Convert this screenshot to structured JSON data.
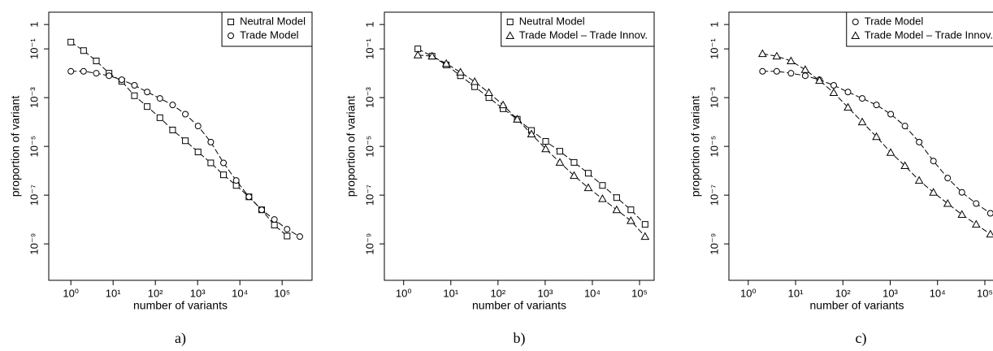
{
  "chart_data": [
    {
      "type": "line",
      "label": "a)",
      "xlabel": "number of variants",
      "ylabel": "proportion of variant",
      "log_x": true,
      "log_y": true,
      "legend": "topright",
      "xlim": [
        0.3,
        510000
      ],
      "ylim": [
        3.2e-11,
        3.2
      ],
      "xticks": [
        {
          "value": 1,
          "label": "10⁰"
        },
        {
          "value": 10,
          "label": "10¹"
        },
        {
          "value": 100,
          "label": "10²"
        },
        {
          "value": 1000,
          "label": "10³"
        },
        {
          "value": 10000,
          "label": "10⁴"
        },
        {
          "value": 100000,
          "label": "10⁵"
        }
      ],
      "yticks": [
        1,
        {
          "value": 0.1,
          "label": "10⁻¹"
        },
        {
          "value": 0.001,
          "label": "10⁻³"
        },
        {
          "value": 1e-05,
          "label": "10⁻⁵"
        },
        {
          "value": 1e-07,
          "label": "10⁻⁷"
        },
        {
          "value": 1e-09,
          "label": "10⁻⁹"
        }
      ],
      "series": [
        {
          "name": "Neutral Model",
          "color": "#000000",
          "marker": "square",
          "x": [
            1,
            2,
            4,
            8,
            16,
            32,
            64,
            128,
            256,
            512,
            1024,
            2048,
            4096,
            8192,
            16384,
            32768,
            65536,
            131072
          ],
          "values": [
            0.19,
            0.085,
            0.032,
            0.01,
            0.0047,
            0.0012,
            0.00043,
            0.00015,
            4.7e-05,
            1.7e-05,
            5.9e-06,
            2.1e-06,
            6.8e-07,
            2.5e-07,
            8.5e-08,
            2.5e-08,
            5.9e-09,
            2.1e-09
          ]
        },
        {
          "name": "Trade Model",
          "color": "#000000",
          "marker": "circle",
          "x": [
            1,
            2,
            4,
            8,
            16,
            32,
            64,
            128,
            256,
            512,
            1024,
            2048,
            4096,
            8192,
            16384,
            32768,
            65536,
            131072,
            262144
          ],
          "values": [
            0.012,
            0.012,
            0.01,
            0.0079,
            0.0054,
            0.0032,
            0.0017,
            0.00093,
            0.0005,
            0.00021,
            6.8e-05,
            1.5e-05,
            2.1e-06,
            4e-07,
            8.5e-08,
            2.5e-08,
            1e-08,
            4e-09,
            2e-09
          ]
        }
      ]
    },
    {
      "type": "line",
      "label": "b)",
      "xlabel": "number of variants",
      "ylabel": "proportion of variant",
      "log_x": true,
      "log_y": true,
      "legend": "topright",
      "xlim": [
        0.39,
        204000
      ],
      "ylim": [
        3.2e-11,
        3.2
      ],
      "xticks": [
        {
          "value": 1,
          "label": "10⁰"
        },
        {
          "value": 10,
          "label": "10¹"
        },
        {
          "value": 100,
          "label": "10²"
        },
        {
          "value": 1000,
          "label": "10³"
        },
        {
          "value": 10000,
          "label": "10⁴"
        },
        {
          "value": 100000,
          "label": "10⁵"
        }
      ],
      "yticks": [
        1,
        {
          "value": 0.1,
          "label": "10⁻¹"
        },
        {
          "value": 0.001,
          "label": "10⁻³"
        },
        {
          "value": 1e-05,
          "label": "10⁻⁵"
        },
        {
          "value": 1e-07,
          "label": "10⁻⁷"
        },
        {
          "value": 1e-09,
          "label": "10⁻⁹"
        }
      ],
      "series": [
        {
          "name": "Neutral Model",
          "color": "#000000",
          "marker": "square",
          "x": [
            2,
            4,
            8,
            16,
            32,
            64,
            128,
            256,
            512,
            1024,
            2048,
            4096,
            8192,
            16384,
            32768,
            65536,
            131072
          ],
          "values": [
            0.1,
            0.05,
            0.022,
            0.0079,
            0.0028,
            0.001,
            0.00035,
            0.00013,
            4.5e-05,
            1.6e-05,
            6.3e-06,
            2.2e-06,
            7.9e-07,
            2.5e-07,
            7.9e-08,
            2.5e-08,
            6.3e-09
          ]
        },
        {
          "name": "Trade Model – Trade Innov.",
          "color": "#000000",
          "marker": "triangle",
          "x": [
            2,
            4,
            8,
            16,
            32,
            64,
            128,
            256,
            512,
            1024,
            2048,
            4096,
            8192,
            16384,
            32768,
            65536,
            131072
          ],
          "values": [
            0.056,
            0.05,
            0.025,
            0.011,
            0.0045,
            0.0016,
            0.0005,
            0.00013,
            3.2e-05,
            7.9e-06,
            2.2e-06,
            6.3e-07,
            2e-07,
            7.1e-08,
            2.5e-08,
            8.9e-09,
            2e-09
          ]
        }
      ]
    },
    {
      "type": "line",
      "label": "c)",
      "xlabel": "number of variants",
      "ylabel": "proportion of variant",
      "log_x": true,
      "log_y": true,
      "legend": "topright",
      "xlim": [
        0.39,
        204000
      ],
      "ylim": [
        3.2e-11,
        3.2
      ],
      "xticks": [
        {
          "value": 1,
          "label": "10⁰"
        },
        {
          "value": 10,
          "label": "10¹"
        },
        {
          "value": 100,
          "label": "10²"
        },
        {
          "value": 1000,
          "label": "10³"
        },
        {
          "value": 10000,
          "label": "10⁴"
        },
        {
          "value": 100000,
          "label": "10⁵"
        }
      ],
      "yticks": [
        1,
        {
          "value": 0.1,
          "label": "10⁻¹"
        },
        {
          "value": 0.001,
          "label": "10⁻³"
        },
        {
          "value": 1e-05,
          "label": "10⁻⁵"
        },
        {
          "value": 1e-07,
          "label": "10⁻⁷"
        },
        {
          "value": 1e-09,
          "label": "10⁻⁹"
        }
      ],
      "series": [
        {
          "name": "Trade Model",
          "color": "#000000",
          "marker": "circle",
          "x": [
            2,
            4,
            8,
            16,
            32,
            64,
            128,
            256,
            512,
            1024,
            2048,
            4096,
            8192,
            16384,
            32768,
            65536,
            131072
          ],
          "values": [
            0.012,
            0.012,
            0.01,
            0.0079,
            0.0054,
            0.0032,
            0.0017,
            0.00093,
            0.0005,
            0.00021,
            6.8e-05,
            1.5e-05,
            2.5e-06,
            5e-07,
            1.3e-07,
            4.5e-08,
            1.8e-08
          ]
        },
        {
          "name": "Trade Model – Trade Innov.",
          "color": "#000000",
          "marker": "triangle",
          "x": [
            2,
            4,
            8,
            16,
            32,
            64,
            128,
            256,
            512,
            1024,
            2048,
            4096,
            8192,
            16384,
            32768,
            65536,
            131072
          ],
          "values": [
            0.063,
            0.05,
            0.032,
            0.014,
            0.005,
            0.0016,
            0.0004,
            0.0001,
            2.5e-05,
            5.6e-06,
            1.6e-06,
            4e-07,
            1.3e-07,
            4.5e-08,
            1.6e-08,
            6.3e-09,
            2.5e-09
          ]
        }
      ]
    }
  ]
}
